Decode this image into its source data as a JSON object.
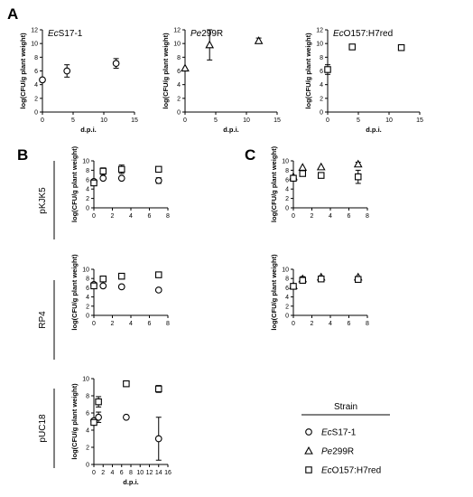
{
  "panels": {
    "A": "A",
    "B": "B",
    "C": "C"
  },
  "markers": {
    "EcS17-1": "circle",
    "Pe299R": "triangle",
    "EcO157:H7red": "square"
  },
  "legend": {
    "title": "Strain",
    "items": [
      {
        "series": "EcS17-1",
        "prefix": "Ec",
        "rest": "S17-1",
        "marker": "circle"
      },
      {
        "series": "Pe299R",
        "prefix": "Pe",
        "rest": "299R",
        "marker": "triangle"
      },
      {
        "series": "EcO157:H7red",
        "prefix": "Ec",
        "rest": "O157:H7red",
        "marker": "square"
      }
    ]
  },
  "row_labels": {
    "row1": "pKJK5",
    "row2": "RP4",
    "row3": "pUC18"
  },
  "chart_data": [
    {
      "id": "A1",
      "type": "scatter",
      "title_prefix": "Ec",
      "title_rest": "S17-1",
      "xlabel": "d.p.i.",
      "ylabel": "log(CFU/g plant weight)",
      "xlim": [
        0,
        15
      ],
      "ylim": [
        0,
        12
      ],
      "xticks": [
        0,
        5,
        10,
        15
      ],
      "yticks": [
        0,
        2,
        4,
        6,
        8,
        10,
        12
      ],
      "series": [
        {
          "name": "EcS17-1",
          "points": [
            {
              "x": 0,
              "y": 4.7
            },
            {
              "x": 4,
              "y": 6.0,
              "err": 0.9
            },
            {
              "x": 12,
              "y": 7.1,
              "err": 0.7
            }
          ]
        }
      ]
    },
    {
      "id": "A2",
      "type": "scatter",
      "title_prefix": "Pe",
      "title_rest": "299R",
      "xlabel": "d.p.i.",
      "ylabel": "log(CFU/g plant weight)",
      "xlim": [
        0,
        15
      ],
      "ylim": [
        0,
        12
      ],
      "xticks": [
        0,
        5,
        10,
        15
      ],
      "yticks": [
        0,
        2,
        4,
        6,
        8,
        10,
        12
      ],
      "series": [
        {
          "name": "Pe299R",
          "points": [
            {
              "x": 0,
              "y": 6.4
            },
            {
              "x": 4,
              "y": 9.8,
              "err": 2.2
            },
            {
              "x": 12,
              "y": 10.4,
              "err": 0.4
            }
          ]
        }
      ]
    },
    {
      "id": "A3",
      "type": "scatter",
      "title_prefix": "Ec",
      "title_rest": "O157:H7red",
      "xlabel": "d.p.i.",
      "ylabel": "log(CFU/g plant weight)",
      "xlim": [
        0,
        15
      ],
      "ylim": [
        0,
        12
      ],
      "xticks": [
        0,
        5,
        10,
        15
      ],
      "yticks": [
        0,
        2,
        4,
        6,
        8,
        10,
        12
      ],
      "series": [
        {
          "name": "EcO157:H7red",
          "points": [
            {
              "x": 0,
              "y": 6.2,
              "err": 0.7
            },
            {
              "x": 4,
              "y": 9.5
            },
            {
              "x": 12,
              "y": 9.4
            }
          ]
        }
      ]
    },
    {
      "id": "B1",
      "type": "scatter",
      "xlabel": "",
      "ylabel": "log(CFU/g plant weight)",
      "xlim": [
        0,
        8
      ],
      "ylim": [
        0,
        10
      ],
      "xticks": [
        0,
        2,
        4,
        6,
        8
      ],
      "yticks": [
        0,
        2,
        4,
        6,
        8,
        10
      ],
      "series": [
        {
          "name": "EcS17-1",
          "points": [
            {
              "x": 0,
              "y": 5.6
            },
            {
              "x": 1,
              "y": 6.3
            },
            {
              "x": 3,
              "y": 6.3
            },
            {
              "x": 7,
              "y": 5.8,
              "err": 0.6
            }
          ]
        },
        {
          "name": "EcO157:H7red",
          "points": [
            {
              "x": 0,
              "y": 5.3,
              "err": 0.4
            },
            {
              "x": 1,
              "y": 7.8,
              "err": 0.7
            },
            {
              "x": 3,
              "y": 8.2,
              "err": 0.9
            },
            {
              "x": 7,
              "y": 8.2
            }
          ]
        }
      ]
    },
    {
      "id": "B2",
      "type": "scatter",
      "xlabel": "",
      "ylabel": "log(CFU/g plant weight)",
      "xlim": [
        0,
        8
      ],
      "ylim": [
        0,
        10
      ],
      "xticks": [
        0,
        2,
        4,
        6,
        8
      ],
      "yticks": [
        0,
        2,
        4,
        6,
        8,
        10
      ],
      "series": [
        {
          "name": "EcS17-1",
          "points": [
            {
              "x": 0,
              "y": 6.7
            },
            {
              "x": 1,
              "y": 6.4
            },
            {
              "x": 3,
              "y": 6.2,
              "err": 0.4
            },
            {
              "x": 7,
              "y": 5.5
            }
          ]
        },
        {
          "name": "EcO157:H7red",
          "points": [
            {
              "x": 0,
              "y": 6.4,
              "err": 0.4
            },
            {
              "x": 1,
              "y": 7.9,
              "err": 0.6
            },
            {
              "x": 3,
              "y": 8.5,
              "err": 0.6
            },
            {
              "x": 7,
              "y": 8.8
            }
          ]
        }
      ]
    },
    {
      "id": "B3",
      "type": "scatter",
      "xlabel": "d.p.i.",
      "ylabel": "log(CFU/g plant weight)",
      "xlim": [
        0,
        16
      ],
      "ylim": [
        0,
        10
      ],
      "xticks": [
        0,
        2,
        4,
        6,
        8,
        10,
        12,
        14,
        16
      ],
      "yticks": [
        0,
        2,
        4,
        6,
        8,
        10
      ],
      "series": [
        {
          "name": "EcS17-1",
          "points": [
            {
              "x": 0,
              "y": 5.1
            },
            {
              "x": 1,
              "y": 5.5,
              "err": 0.6
            },
            {
              "x": 7,
              "y": 5.5
            },
            {
              "x": 14,
              "y": 3.0,
              "err": 2.5
            }
          ]
        },
        {
          "name": "EcO157:H7red",
          "points": [
            {
              "x": 0,
              "y": 4.9,
              "err": 0.3
            },
            {
              "x": 1,
              "y": 7.3,
              "err": 0.6
            },
            {
              "x": 7,
              "y": 9.4
            },
            {
              "x": 14,
              "y": 8.8,
              "err": 0.4
            }
          ]
        }
      ]
    },
    {
      "id": "C1",
      "type": "scatter",
      "xlabel": "",
      "ylabel": "log(CFU/g plant weight)",
      "xlim": [
        0,
        8
      ],
      "ylim": [
        0,
        10
      ],
      "xticks": [
        0,
        2,
        4,
        6,
        8
      ],
      "yticks": [
        0,
        2,
        4,
        6,
        8,
        10
      ],
      "series": [
        {
          "name": "Pe299R",
          "points": [
            {
              "x": 0,
              "y": 6.6
            },
            {
              "x": 1,
              "y": 8.6
            },
            {
              "x": 3,
              "y": 8.7
            },
            {
              "x": 7,
              "y": 9.3,
              "err": 0.4
            }
          ]
        },
        {
          "name": "EcO157:H7red",
          "points": [
            {
              "x": 0,
              "y": 6.3,
              "err": 0.3
            },
            {
              "x": 1,
              "y": 7.3
            },
            {
              "x": 3,
              "y": 6.9
            },
            {
              "x": 7,
              "y": 6.6,
              "err": 1.4
            }
          ]
        }
      ]
    },
    {
      "id": "C2",
      "type": "scatter",
      "xlabel": "",
      "ylabel": "log(CFU/g plant weight)",
      "xlim": [
        0,
        8
      ],
      "ylim": [
        0,
        10
      ],
      "xticks": [
        0,
        2,
        4,
        6,
        8
      ],
      "yticks": [
        0,
        2,
        4,
        6,
        8,
        10
      ],
      "series": [
        {
          "name": "Pe299R",
          "points": [
            {
              "x": 0,
              "y": 6.4
            },
            {
              "x": 1,
              "y": 7.9,
              "err": 0.5
            },
            {
              "x": 3,
              "y": 8.3
            },
            {
              "x": 7,
              "y": 8.3
            }
          ]
        },
        {
          "name": "EcO157:H7red",
          "points": [
            {
              "x": 0,
              "y": 6.3
            },
            {
              "x": 1,
              "y": 7.6,
              "err": 0.6
            },
            {
              "x": 3,
              "y": 7.9
            },
            {
              "x": 7,
              "y": 7.8,
              "err": 0.3
            }
          ]
        }
      ]
    }
  ]
}
